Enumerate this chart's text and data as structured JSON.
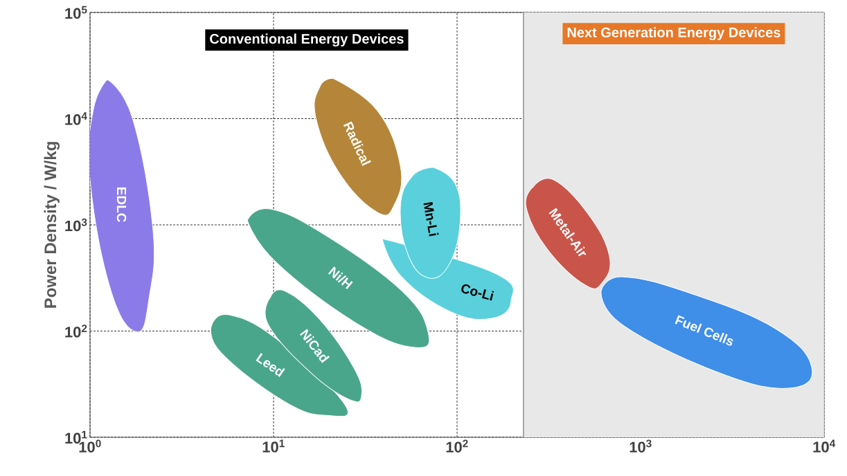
{
  "chart_data": {
    "type": "area",
    "ylabel": "Power Density / W/kg",
    "log": "xy",
    "grid": true,
    "xlim": [
      1,
      10000
    ],
    "ylim": [
      10,
      100000
    ],
    "xticks": [
      {
        "value": 1,
        "label": "10$^{0}$"
      },
      {
        "value": 10,
        "label": "10$^{1}$"
      },
      {
        "value": 100,
        "label": "10$^{2}$"
      },
      {
        "value": 1000,
        "label": "10$^{3}$"
      },
      {
        "value": 10000,
        "label": "10$^{4}$"
      }
    ],
    "yticks": [
      {
        "value": 10,
        "label": "10$^{1}$"
      },
      {
        "value": 100,
        "label": "10$^{2}$"
      },
      {
        "value": 1000,
        "label": "10$^{3}$"
      },
      {
        "value": 10000,
        "label": "10$^{4}$"
      },
      {
        "value": 100000,
        "label": "10$^{5}$"
      }
    ],
    "bands": [
      {
        "axis": "x",
        "from": 230,
        "to": 10000,
        "label": "Next Generation Energy Devices",
        "color": "#e8e8e8"
      }
    ],
    "ref_lines": [
      {
        "axis": "x",
        "value": 230,
        "color": "#999999"
      }
    ],
    "annotations": [
      "Conventional Energy Devices"
    ],
    "series": [
      {
        "name": "EDLC",
        "color": "#8b7be8",
        "x": [
          1.24,
          1.7,
          2.2,
          2.1,
          1.8,
          1.3,
          1.0,
          1.04
        ],
        "values": [
          23300,
          10200,
          927,
          207,
          98,
          240,
          2650,
          11900
        ]
      },
      {
        "name": "Radical",
        "color": "#b5863a",
        "x": [
          21,
          36.8,
          49.1,
          45.7,
          36.8,
          22.8,
          17,
          17.9
        ],
        "values": [
          24000,
          11900,
          3580,
          1570,
          1310,
          3080,
          10200,
          20100
        ]
      },
      {
        "name": "Ni/H",
        "color": "#4aa68a",
        "x": [
          7.2,
          9.6,
          19.2,
          49.9,
          69.5,
          59.4,
          29.6,
          10.4
        ],
        "values": [
          1110,
          1410,
          798,
          240,
          98,
          70,
          113,
          439
        ]
      },
      {
        "name": "Leed",
        "color": "#4aa68a",
        "x": [
          4.6,
          5.7,
          10.4,
          19.2,
          24.5,
          19.2,
          11.4,
          5.2
        ],
        "values": [
          113,
          142,
          84,
          null,
          20.2,
          16.1,
          21.8,
          62
        ]
      },
      {
        "name": "NiCad",
        "color": "#4aa68a",
        "x": [
          9.6,
          11.4,
          17.6,
          27.2,
          30.2,
          26,
          16.1,
          9.4
        ],
        "values": [
          207,
          240,
          132,
          46,
          25,
          22.6,
          40,
          113
        ]
      },
      {
        "name": "Co-Li",
        "color": "#5ad0dc",
        "x": [
          39.1,
          54.4,
          91.6,
          161,
          197,
          155,
          91.6,
          49.9
        ],
        "values": [
          741,
          null,
          null,
          350,
          192,
          132,
          153,
          324
        ]
      },
      {
        "name": "Mn-Li",
        "color": "#5ad0dc",
        "x": [
          73.8,
          97.5,
          104,
          91.6,
          70.7,
          54.4,
          49.1,
          56.9
        ],
        "values": [
          3480,
          2460,
          1080,
          439,
          315,
          509,
          1460,
          2860
        ]
      },
      {
        "name": "Metal-Air",
        "color": "#c9554a",
        "x": [
          260,
          337,
          521,
          676,
          620,
          499,
          310,
          238
        ],
        "values": [
          2280,
          2650,
          1250,
          509,
          288,
          271,
          592,
          1460
        ]
      },
      {
        "name": "Fuel Cells",
        "color": "#3f8ee8",
        "x": [
          610,
          805,
          1920,
          5450,
          8550,
          6470,
          2720,
          805
        ],
        "values": [
          240,
          324,
          223,
          105,
          46,
          29,
          40,
          113
        ]
      }
    ]
  }
}
